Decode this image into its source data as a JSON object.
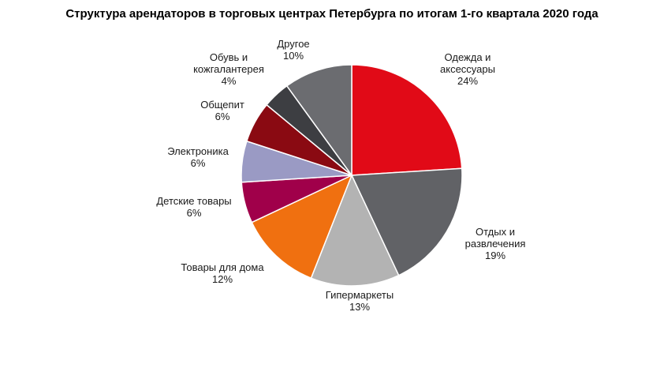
{
  "chart_data": {
    "type": "pie",
    "title": "Структура арендаторов в торговых центрах Петербурга по итогам 1-го квартала 2020 года",
    "unit": "%",
    "slices": [
      {
        "label_lines": [
          "Одежда и",
          "аксессуары"
        ],
        "value_label": "24%",
        "value": 24,
        "color": "#e10a17"
      },
      {
        "label_lines": [
          "Отдых и",
          "развлечения"
        ],
        "value_label": "19%",
        "value": 19,
        "color": "#616266"
      },
      {
        "label_lines": [
          "Гипермаркеты"
        ],
        "value_label": "13%",
        "value": 13,
        "color": "#b3b3b3"
      },
      {
        "label_lines": [
          "Товары для дома"
        ],
        "value_label": "12%",
        "value": 12,
        "color": "#f07010"
      },
      {
        "label_lines": [
          "Детские товары"
        ],
        "value_label": "6%",
        "value": 6,
        "color": "#a0004a"
      },
      {
        "label_lines": [
          "Электроника"
        ],
        "value_label": "6%",
        "value": 6,
        "color": "#9a9ac4"
      },
      {
        "label_lines": [
          "Общепит"
        ],
        "value_label": "6%",
        "value": 6,
        "color": "#8a0a12"
      },
      {
        "label_lines": [
          "Обувь и",
          "кожгалантерея"
        ],
        "value_label": "4%",
        "value": 4,
        "color": "#3d3e42"
      },
      {
        "label_lines": [
          "Другое"
        ],
        "value_label": "10%",
        "value": 10,
        "color": "#6b6c70"
      }
    ]
  }
}
